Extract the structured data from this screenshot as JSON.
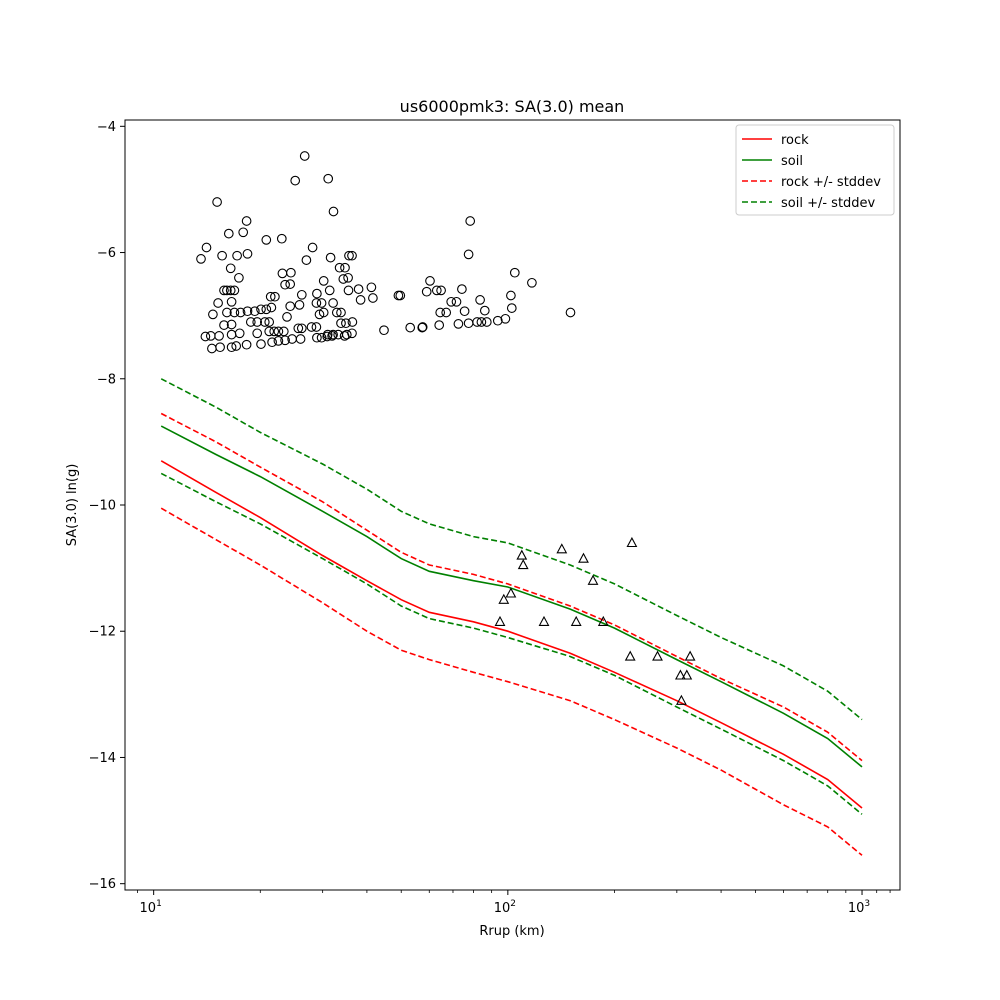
{
  "chart_data": {
    "type": "line",
    "title": "us6000pmk3: SA(3.0) mean",
    "xlabel": "Rrup (km)",
    "ylabel": "SA(3.0) ln(g)",
    "xscale": "log",
    "xlim": [
      8.3,
      1280
    ],
    "ylim": [
      -16.1,
      -3.9
    ],
    "x_ticks": [
      {
        "value": 10,
        "base": "10",
        "exp": "1"
      },
      {
        "value": 100,
        "base": "10",
        "exp": "2"
      },
      {
        "value": 1000,
        "base": "10",
        "exp": "3"
      }
    ],
    "y_ticks": [
      {
        "value": -4,
        "label": "−4"
      },
      {
        "value": -6,
        "label": "−6"
      },
      {
        "value": -8,
        "label": "−8"
      },
      {
        "value": -10,
        "label": "−10"
      },
      {
        "value": -12,
        "label": "−12"
      },
      {
        "value": -14,
        "label": "−14"
      },
      {
        "value": -16,
        "label": "−16"
      }
    ],
    "legend": {
      "placement": "top-right",
      "entries": [
        {
          "label": "rock",
          "color": "#ff0000",
          "style": "solid"
        },
        {
          "label": "soil",
          "color": "#008000",
          "style": "solid"
        },
        {
          "label": "rock +/- stddev",
          "color": "#ff0000",
          "style": "dashed"
        },
        {
          "label": "soil +/- stddev",
          "color": "#008000",
          "style": "dashed"
        }
      ]
    },
    "series": [
      {
        "name": "rock",
        "color": "#ff0000",
        "style": "solid",
        "x": [
          10.5,
          15,
          20,
          30,
          40,
          50,
          60,
          80,
          100,
          150,
          200,
          300,
          400,
          600,
          800,
          1000
        ],
        "y": [
          -9.3,
          -9.8,
          -10.2,
          -10.8,
          -11.2,
          -11.5,
          -11.7,
          -11.85,
          -12.0,
          -12.35,
          -12.65,
          -13.1,
          -13.45,
          -13.95,
          -14.35,
          -14.8
        ]
      },
      {
        "name": "soil",
        "color": "#008000",
        "style": "solid",
        "x": [
          10.5,
          15,
          20,
          30,
          40,
          50,
          60,
          80,
          100,
          150,
          200,
          300,
          400,
          600,
          800,
          1000
        ],
        "y": [
          -8.75,
          -9.2,
          -9.55,
          -10.1,
          -10.5,
          -10.85,
          -11.05,
          -11.2,
          -11.3,
          -11.65,
          -11.95,
          -12.45,
          -12.8,
          -13.3,
          -13.7,
          -14.15
        ]
      },
      {
        "name": "rock + stddev",
        "color": "#ff0000",
        "style": "dashed",
        "x": [
          10.5,
          15,
          20,
          30,
          40,
          50,
          60,
          80,
          100,
          150,
          200,
          300,
          400,
          600,
          800,
          1000
        ],
        "y": [
          -8.55,
          -9.0,
          -9.4,
          -9.95,
          -10.4,
          -10.75,
          -10.95,
          -11.1,
          -11.25,
          -11.6,
          -11.9,
          -12.4,
          -12.75,
          -13.2,
          -13.6,
          -14.05
        ]
      },
      {
        "name": "rock - stddev",
        "color": "#ff0000",
        "style": "dashed",
        "x": [
          10.5,
          15,
          20,
          30,
          40,
          50,
          60,
          80,
          100,
          150,
          200,
          300,
          400,
          600,
          800,
          1000
        ],
        "y": [
          -10.05,
          -10.55,
          -10.95,
          -11.55,
          -12.0,
          -12.3,
          -12.45,
          -12.65,
          -12.8,
          -13.1,
          -13.4,
          -13.85,
          -14.2,
          -14.75,
          -15.1,
          -15.55
        ]
      },
      {
        "name": "soil + stddev",
        "color": "#008000",
        "style": "dashed",
        "x": [
          10.5,
          15,
          20,
          30,
          40,
          50,
          60,
          80,
          100,
          150,
          200,
          300,
          400,
          600,
          800,
          1000
        ],
        "y": [
          -8.0,
          -8.45,
          -8.85,
          -9.35,
          -9.75,
          -10.1,
          -10.3,
          -10.5,
          -10.6,
          -10.95,
          -11.25,
          -11.75,
          -12.1,
          -12.55,
          -12.95,
          -13.4
        ]
      },
      {
        "name": "soil - stddev",
        "color": "#008000",
        "style": "dashed",
        "x": [
          10.5,
          15,
          20,
          30,
          40,
          50,
          60,
          80,
          100,
          150,
          200,
          300,
          400,
          600,
          800,
          1000
        ],
        "y": [
          -9.5,
          -9.95,
          -10.3,
          -10.85,
          -11.25,
          -11.6,
          -11.8,
          -11.95,
          -12.1,
          -12.4,
          -12.7,
          -13.2,
          -13.55,
          -14.05,
          -14.45,
          -14.9
        ]
      }
    ],
    "scatter_circles": [
      [
        13.6,
        -6.1
      ],
      [
        14.1,
        -5.92
      ],
      [
        14.7,
        -6.98
      ],
      [
        15.1,
        -5.2
      ],
      [
        15.6,
        -6.05
      ],
      [
        16.3,
        -5.7
      ],
      [
        15.8,
        -6.6
      ],
      [
        16.1,
        -6.6
      ],
      [
        16.5,
        -6.6
      ],
      [
        16.9,
        -6.6
      ],
      [
        16.5,
        -6.25
      ],
      [
        17.4,
        -6.4
      ],
      [
        17.2,
        -6.05
      ],
      [
        17.9,
        -5.68
      ],
      [
        18.3,
        -5.5
      ],
      [
        18.4,
        -6.02
      ],
      [
        15.2,
        -6.8
      ],
      [
        16.6,
        -6.78
      ],
      [
        16.1,
        -6.95
      ],
      [
        15.8,
        -7.15
      ],
      [
        16.9,
        -6.95
      ],
      [
        17.6,
        -6.95
      ],
      [
        18.4,
        -6.93
      ],
      [
        19.3,
        -6.93
      ],
      [
        20.1,
        -6.9
      ],
      [
        20.8,
        -6.9
      ],
      [
        21.5,
        -6.87
      ],
      [
        16.6,
        -7.14
      ],
      [
        18.8,
        -7.1
      ],
      [
        19.6,
        -7.1
      ],
      [
        20.6,
        -7.1
      ],
      [
        21.2,
        -7.1
      ],
      [
        14.0,
        -7.33
      ],
      [
        14.5,
        -7.32
      ],
      [
        15.3,
        -7.32
      ],
      [
        16.6,
        -7.3
      ],
      [
        17.5,
        -7.28
      ],
      [
        19.6,
        -7.28
      ],
      [
        21.2,
        -7.25
      ],
      [
        21.9,
        -7.25
      ],
      [
        22.5,
        -7.25
      ],
      [
        23.3,
        -7.25
      ],
      [
        14.6,
        -7.52
      ],
      [
        15.4,
        -7.5
      ],
      [
        16.6,
        -7.5
      ],
      [
        17.1,
        -7.48
      ],
      [
        18.3,
        -7.46
      ],
      [
        20.1,
        -7.45
      ],
      [
        21.6,
        -7.42
      ],
      [
        22.5,
        -7.4
      ],
      [
        23.5,
        -7.39
      ],
      [
        24.6,
        -7.37
      ],
      [
        26.0,
        -7.37
      ],
      [
        20.8,
        -5.8
      ],
      [
        23.0,
        -5.78
      ],
      [
        25.1,
        -4.86
      ],
      [
        26.7,
        -4.47
      ],
      [
        28.1,
        -5.92
      ],
      [
        27.0,
        -6.12
      ],
      [
        31.1,
        -4.83
      ],
      [
        31.6,
        -6.08
      ],
      [
        32.2,
        -5.35
      ],
      [
        23.1,
        -6.33
      ],
      [
        24.4,
        -6.32
      ],
      [
        24.3,
        -6.5
      ],
      [
        23.5,
        -6.51
      ],
      [
        21.4,
        -6.7
      ],
      [
        22.0,
        -6.7
      ],
      [
        26.2,
        -6.67
      ],
      [
        28.9,
        -6.65
      ],
      [
        31.4,
        -6.6
      ],
      [
        30.2,
        -6.45
      ],
      [
        33.5,
        -6.24
      ],
      [
        34.7,
        -6.24
      ],
      [
        34.3,
        -6.42
      ],
      [
        35.4,
        -6.4
      ],
      [
        35.6,
        -6.05
      ],
      [
        36.3,
        -6.05
      ],
      [
        37.9,
        -6.58
      ],
      [
        38.4,
        -6.75
      ],
      [
        35.5,
        -6.6
      ],
      [
        41.2,
        -6.55
      ],
      [
        41.6,
        -6.72
      ],
      [
        24.3,
        -6.85
      ],
      [
        23.8,
        -7.02
      ],
      [
        25.8,
        -6.83
      ],
      [
        28.8,
        -6.8
      ],
      [
        29.8,
        -6.8
      ],
      [
        32.1,
        -6.8
      ],
      [
        29.4,
        -6.98
      ],
      [
        30.2,
        -6.95
      ],
      [
        32.9,
        -6.95
      ],
      [
        33.8,
        -6.95
      ],
      [
        33.8,
        -7.12
      ],
      [
        34.9,
        -7.12
      ],
      [
        36.4,
        -7.1
      ],
      [
        25.6,
        -7.2
      ],
      [
        26.2,
        -7.2
      ],
      [
        27.9,
        -7.18
      ],
      [
        28.8,
        -7.18
      ],
      [
        31.0,
        -7.3
      ],
      [
        32.1,
        -7.3
      ],
      [
        33.2,
        -7.3
      ],
      [
        35.1,
        -7.3
      ],
      [
        36.3,
        -7.28
      ],
      [
        28.9,
        -7.35
      ],
      [
        29.8,
        -7.35
      ],
      [
        30.9,
        -7.33
      ],
      [
        31.9,
        -7.32
      ],
      [
        34.6,
        -7.32
      ],
      [
        44.7,
        -7.23
      ],
      [
        49.1,
        -6.68
      ],
      [
        49.7,
        -6.68
      ],
      [
        53.0,
        -7.19
      ],
      [
        57.3,
        -7.19
      ],
      [
        57.5,
        -7.18
      ],
      [
        59.0,
        -6.62
      ],
      [
        60.3,
        -6.45
      ],
      [
        63.0,
        -6.6
      ],
      [
        64.8,
        -6.6
      ],
      [
        64.4,
        -6.95
      ],
      [
        67.0,
        -6.95
      ],
      [
        64.0,
        -7.15
      ],
      [
        69.2,
        -6.78
      ],
      [
        71.6,
        -6.78
      ],
      [
        72.5,
        -7.13
      ],
      [
        74.2,
        -6.58
      ],
      [
        75.5,
        -6.93
      ],
      [
        77.5,
        -6.03
      ],
      [
        78.3,
        -5.5
      ],
      [
        77.5,
        -7.12
      ],
      [
        83.5,
        -6.75
      ],
      [
        81.9,
        -7.1
      ],
      [
        84.2,
        -7.1
      ],
      [
        86.1,
        -6.92
      ],
      [
        87.2,
        -7.1
      ],
      [
        93.7,
        -7.08
      ],
      [
        98.4,
        -7.05
      ],
      [
        102.0,
        -6.68
      ],
      [
        102.6,
        -6.88
      ],
      [
        104.6,
        -6.32
      ],
      [
        116.9,
        -6.48
      ],
      [
        150.3,
        -6.95
      ]
    ],
    "scatter_triangles": [
      [
        95.0,
        -11.85
      ],
      [
        97.4,
        -11.5
      ],
      [
        102.0,
        -11.4
      ],
      [
        109.5,
        -10.8
      ],
      [
        110.5,
        -10.95
      ],
      [
        142.0,
        -10.7
      ],
      [
        163.5,
        -10.85
      ],
      [
        174.0,
        -11.2
      ],
      [
        126.5,
        -11.85
      ],
      [
        156.0,
        -11.85
      ],
      [
        186.0,
        -11.85
      ],
      [
        224.0,
        -10.6
      ],
      [
        221.5,
        -12.4
      ],
      [
        264.5,
        -12.4
      ],
      [
        327.0,
        -12.4
      ],
      [
        307.0,
        -12.7
      ],
      [
        320.0,
        -12.7
      ],
      [
        309.0,
        -13.1
      ]
    ]
  }
}
